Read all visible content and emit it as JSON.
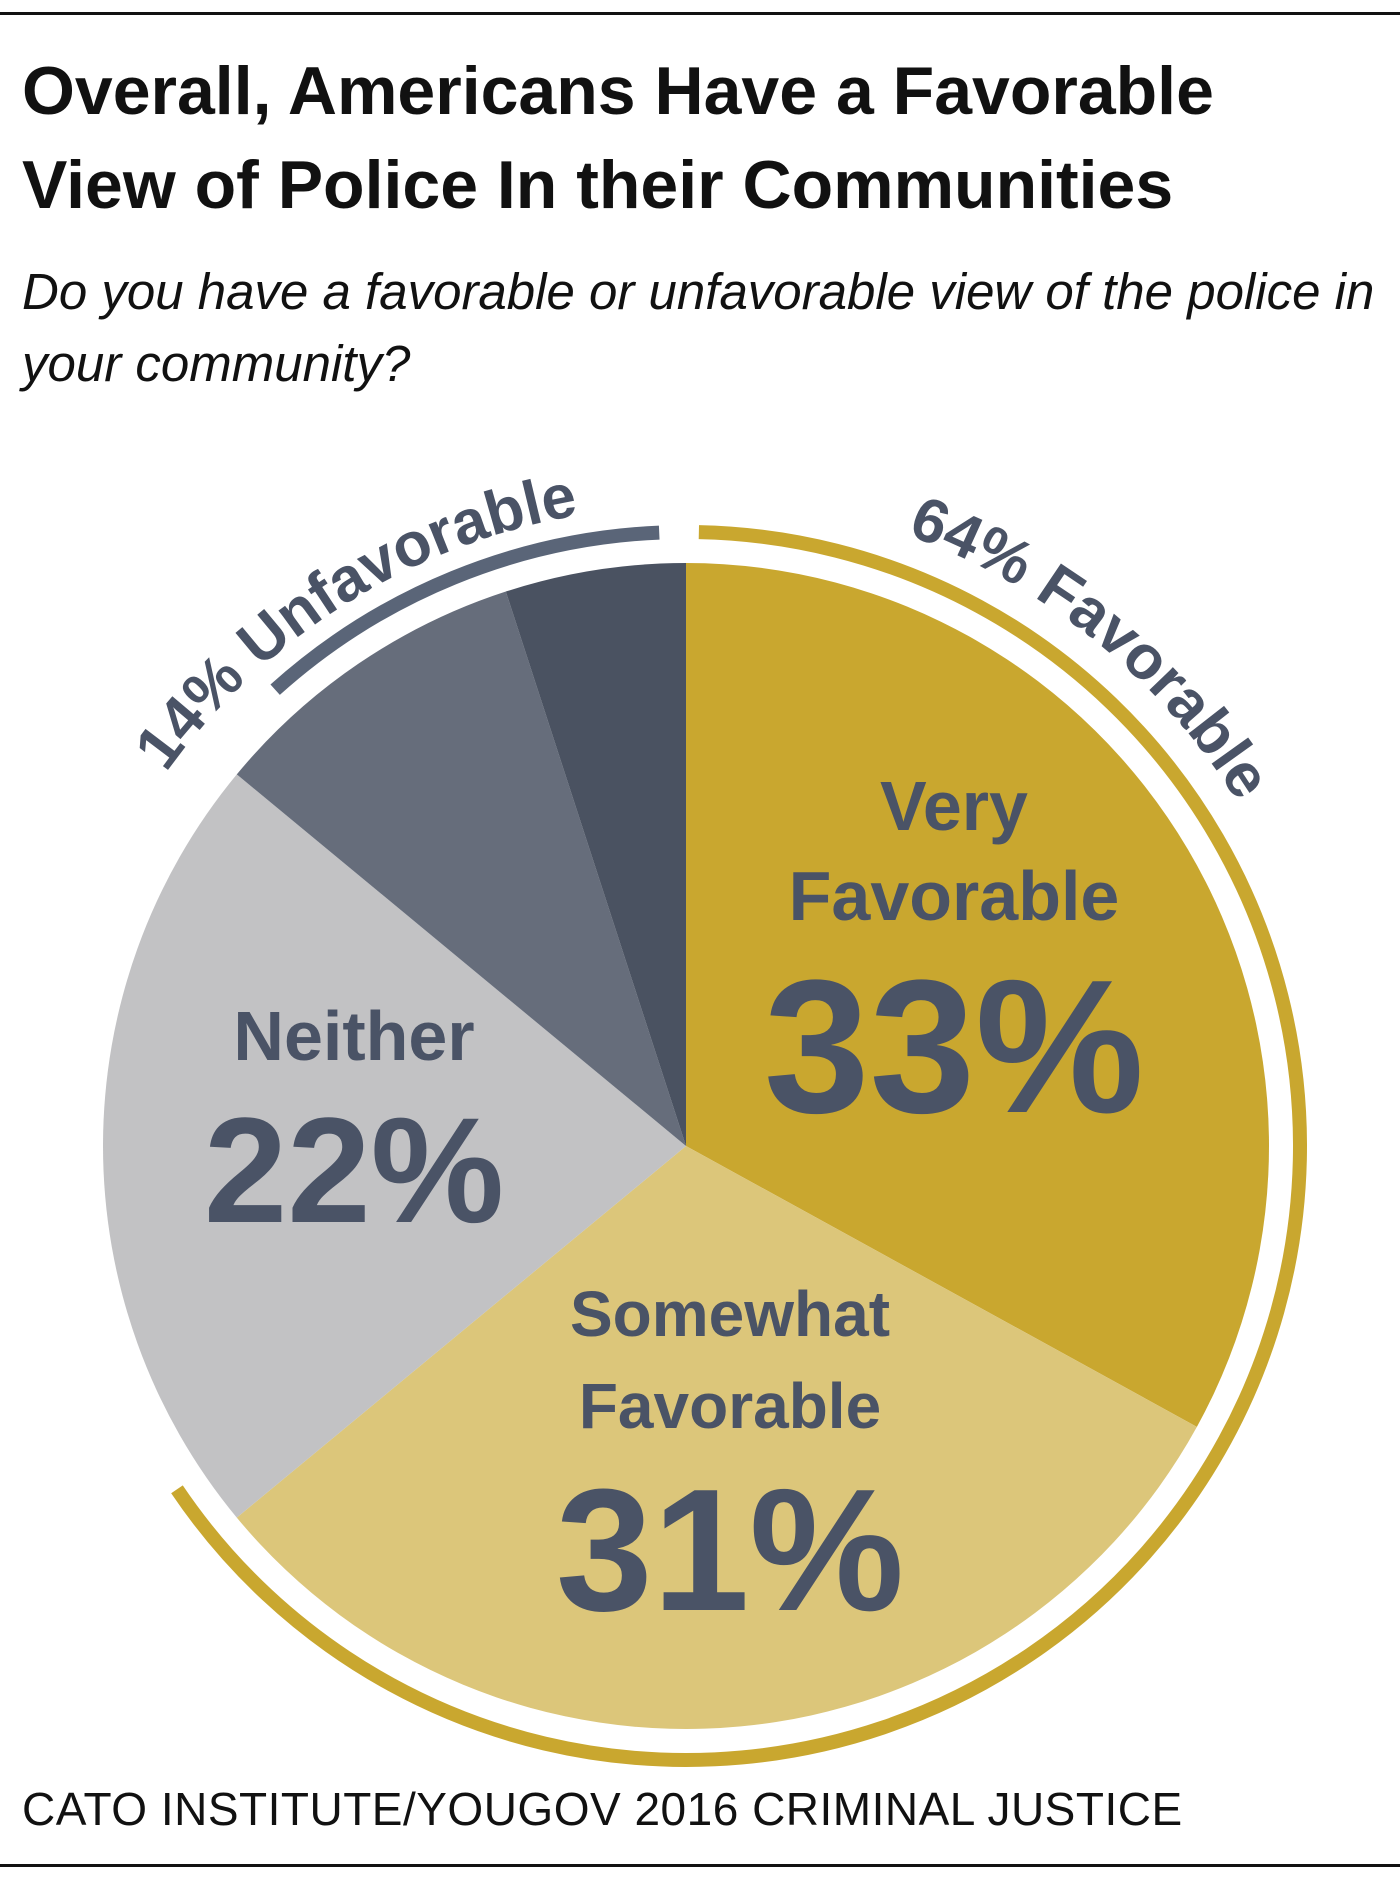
{
  "title": "Overall, Americans Have a Favorable View of Police In their Communities",
  "subtitle": "Do you have a favorable or unfavorable view of the police in your community?",
  "source": "CATO INSTITUTE/YOUGOV 2016 CRIMINAL JUSTICE",
  "chart_data": {
    "type": "pie",
    "title": "Overall, Americans Have a Favorable View of Police In their Communities",
    "subtitle": "Do you have a favorable or unfavorable view of the police in your community?",
    "slices": [
      {
        "key": "very-favorable",
        "label_lines": [
          "Very",
          "Favorable"
        ],
        "value": 33,
        "value_label": "33%",
        "color": "#c9a72f"
      },
      {
        "key": "somewhat-favorable",
        "label_lines": [
          "Somewhat",
          "Favorable"
        ],
        "value": 31,
        "value_label": "31%",
        "color": "#dcc67a"
      },
      {
        "key": "neither",
        "label_lines": [
          "Neither"
        ],
        "value": 22,
        "value_label": "22%",
        "color": "#c2c2c4"
      },
      {
        "key": "somewhat-unfavorable",
        "label_lines": [],
        "value": 9,
        "value_label": "",
        "color": "#666d7b"
      },
      {
        "key": "very-unfavorable",
        "label_lines": [],
        "value": 5,
        "value_label": "",
        "color": "#4a5261"
      }
    ],
    "groups": [
      {
        "key": "favorable",
        "label": "64% Favorable",
        "value": 64,
        "color": "#c9a72f"
      },
      {
        "key": "unfavorable",
        "label": "14% Unfavorable",
        "value": 14,
        "color": "#5a6578"
      }
    ],
    "label_color": "#4a5366",
    "legend": "none"
  }
}
